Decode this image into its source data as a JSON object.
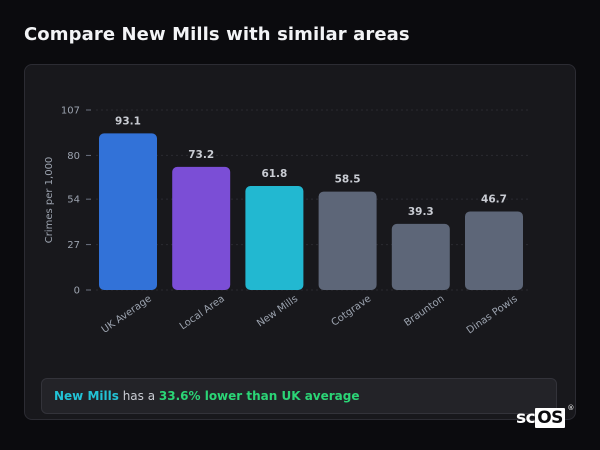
{
  "page": {
    "title": "Compare New Mills with similar areas"
  },
  "summary": {
    "area_name": "New Mills",
    "connector": " has a ",
    "difference": "33.6% lower than UK average"
  },
  "brand": {
    "prefix": "sc",
    "suffix": "OS",
    "mark": "®"
  },
  "colors": {
    "uk_average": "#3272d8",
    "local_area": "#7b4ed6",
    "new_mills": "#22b8d1",
    "similar_area": "#5d6678",
    "grid": "#2a2a31",
    "tick_text": "#9ca3af",
    "value_text": "#c9ccd3"
  },
  "chart_data": {
    "type": "bar",
    "categories": [
      "UK Average",
      "Local Area",
      "New Mills",
      "Cotgrave",
      "Braunton",
      "Dinas Powis"
    ],
    "values": [
      93.1,
      73.2,
      61.8,
      58.5,
      39.3,
      46.7
    ],
    "data_labels": [
      "93.1",
      "73.2",
      "61.8",
      "58.5",
      "39.3",
      "46.7"
    ],
    "bar_colors": [
      "#3272d8",
      "#7b4ed6",
      "#22b8d1",
      "#5d6678",
      "#5d6678",
      "#5d6678"
    ],
    "ylabel": "Crimes per 1,000",
    "yticks": [
      0,
      27,
      54,
      80,
      107
    ],
    "ylim": [
      0,
      107
    ],
    "grid": true,
    "legend": "none"
  }
}
